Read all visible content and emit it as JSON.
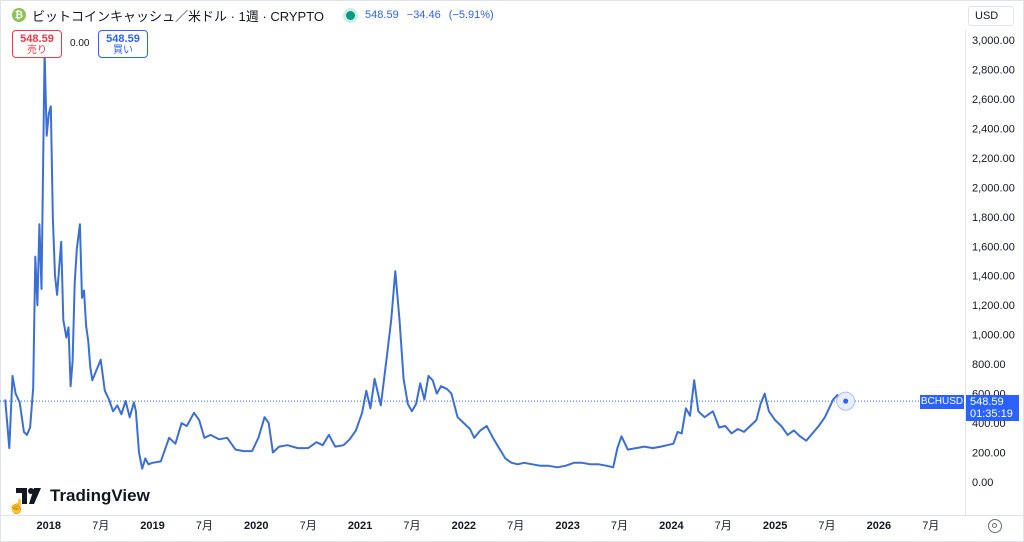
{
  "header": {
    "title": "ビットコインキャッシュ／米ドル · 1週 · CRYPTO",
    "coin_glyph": "₿",
    "price": "548.59",
    "change": "−34.46",
    "change_pct": "(−5.91%)"
  },
  "trade": {
    "sell_value": "548.59",
    "sell_label": "売り",
    "spread": "0.00",
    "buy_value": "548.59",
    "buy_label": "買い"
  },
  "currency_select": "USD",
  "last_price": {
    "symbol": "BCHUSD",
    "value": "548.59",
    "countdown": "01:35:19"
  },
  "brand": "TradingView",
  "colors": {
    "line": "#2962ff",
    "accent": "#2962ff",
    "sell": "#f23645",
    "status": "#089981"
  },
  "chart_data": {
    "type": "line",
    "series_color": "#3b6fd8",
    "ylim": [
      0,
      3000
    ],
    "y_ticks": [
      "0.00",
      "200.00",
      "400.00",
      "600.00",
      "800.00",
      "1,000.00",
      "1,200.00",
      "1,400.00",
      "1,600.00",
      "1,800.00",
      "2,000.00",
      "2,200.00",
      "2,400.00",
      "2,600.00",
      "2,800.00",
      "3,000.00"
    ],
    "x_tick_labels": [
      {
        "label": "2018",
        "x": 2018.0,
        "bold": true
      },
      {
        "label": "7月",
        "x": 2018.5,
        "bold": false
      },
      {
        "label": "2019",
        "x": 2019.0,
        "bold": true
      },
      {
        "label": "7月",
        "x": 2019.5,
        "bold": false
      },
      {
        "label": "2020",
        "x": 2020.0,
        "bold": true
      },
      {
        "label": "7月",
        "x": 2020.5,
        "bold": false
      },
      {
        "label": "2021",
        "x": 2021.0,
        "bold": true
      },
      {
        "label": "7月",
        "x": 2021.5,
        "bold": false
      },
      {
        "label": "2022",
        "x": 2022.0,
        "bold": true
      },
      {
        "label": "7月",
        "x": 2022.5,
        "bold": false
      },
      {
        "label": "2023",
        "x": 2023.0,
        "bold": true
      },
      {
        "label": "7月",
        "x": 2023.5,
        "bold": false
      },
      {
        "label": "2024",
        "x": 2024.0,
        "bold": true
      },
      {
        "label": "7月",
        "x": 2024.5,
        "bold": false
      },
      {
        "label": "2025",
        "x": 2025.0,
        "bold": true
      },
      {
        "label": "7月",
        "x": 2025.5,
        "bold": false
      },
      {
        "label": "2026",
        "x": 2026.0,
        "bold": true
      },
      {
        "label": "7月",
        "x": 2026.5,
        "bold": false
      }
    ],
    "x_range": [
      2017.53,
      2026.83
    ],
    "points": [
      [
        2017.58,
        560
      ],
      [
        2017.62,
        230
      ],
      [
        2017.65,
        720
      ],
      [
        2017.68,
        600
      ],
      [
        2017.72,
        540
      ],
      [
        2017.76,
        340
      ],
      [
        2017.79,
        320
      ],
      [
        2017.82,
        370
      ],
      [
        2017.85,
        640
      ],
      [
        2017.87,
        1530
      ],
      [
        2017.89,
        1200
      ],
      [
        2017.91,
        1750
      ],
      [
        2017.93,
        1310
      ],
      [
        2017.96,
        2920
      ],
      [
        2017.98,
        2350
      ],
      [
        2018.0,
        2500
      ],
      [
        2018.02,
        2550
      ],
      [
        2018.04,
        1780
      ],
      [
        2018.06,
        1400
      ],
      [
        2018.08,
        1270
      ],
      [
        2018.1,
        1450
      ],
      [
        2018.12,
        1630
      ],
      [
        2018.14,
        1100
      ],
      [
        2018.17,
        980
      ],
      [
        2018.19,
        1050
      ],
      [
        2018.21,
        650
      ],
      [
        2018.23,
        820
      ],
      [
        2018.25,
        1350
      ],
      [
        2018.27,
        1580
      ],
      [
        2018.3,
        1750
      ],
      [
        2018.32,
        1250
      ],
      [
        2018.34,
        1300
      ],
      [
        2018.36,
        1060
      ],
      [
        2018.38,
        960
      ],
      [
        2018.4,
        780
      ],
      [
        2018.42,
        690
      ],
      [
        2018.46,
        760
      ],
      [
        2018.5,
        830
      ],
      [
        2018.54,
        620
      ],
      [
        2018.58,
        560
      ],
      [
        2018.62,
        480
      ],
      [
        2018.66,
        520
      ],
      [
        2018.7,
        460
      ],
      [
        2018.74,
        550
      ],
      [
        2018.78,
        440
      ],
      [
        2018.82,
        540
      ],
      [
        2018.84,
        480
      ],
      [
        2018.87,
        200
      ],
      [
        2018.9,
        90
      ],
      [
        2018.93,
        160
      ],
      [
        2018.96,
        120
      ],
      [
        2019.0,
        130
      ],
      [
        2019.08,
        140
      ],
      [
        2019.16,
        300
      ],
      [
        2019.22,
        260
      ],
      [
        2019.28,
        400
      ],
      [
        2019.33,
        380
      ],
      [
        2019.4,
        470
      ],
      [
        2019.45,
        420
      ],
      [
        2019.5,
        300
      ],
      [
        2019.56,
        320
      ],
      [
        2019.64,
        290
      ],
      [
        2019.72,
        300
      ],
      [
        2019.8,
        220
      ],
      [
        2019.88,
        210
      ],
      [
        2019.96,
        210
      ],
      [
        2020.02,
        300
      ],
      [
        2020.08,
        440
      ],
      [
        2020.12,
        400
      ],
      [
        2020.16,
        200
      ],
      [
        2020.22,
        240
      ],
      [
        2020.3,
        250
      ],
      [
        2020.4,
        230
      ],
      [
        2020.5,
        230
      ],
      [
        2020.58,
        270
      ],
      [
        2020.64,
        250
      ],
      [
        2020.7,
        320
      ],
      [
        2020.76,
        240
      ],
      [
        2020.84,
        250
      ],
      [
        2020.9,
        290
      ],
      [
        2020.96,
        350
      ],
      [
        2021.02,
        470
      ],
      [
        2021.06,
        620
      ],
      [
        2021.1,
        500
      ],
      [
        2021.14,
        700
      ],
      [
        2021.2,
        520
      ],
      [
        2021.26,
        860
      ],
      [
        2021.3,
        1100
      ],
      [
        2021.34,
        1430
      ],
      [
        2021.38,
        1100
      ],
      [
        2021.42,
        700
      ],
      [
        2021.46,
        530
      ],
      [
        2021.5,
        480
      ],
      [
        2021.54,
        530
      ],
      [
        2021.58,
        670
      ],
      [
        2021.62,
        560
      ],
      [
        2021.66,
        720
      ],
      [
        2021.7,
        690
      ],
      [
        2021.74,
        600
      ],
      [
        2021.78,
        650
      ],
      [
        2021.84,
        630
      ],
      [
        2021.88,
        600
      ],
      [
        2021.94,
        440
      ],
      [
        2022.0,
        400
      ],
      [
        2022.06,
        360
      ],
      [
        2022.1,
        300
      ],
      [
        2022.16,
        350
      ],
      [
        2022.22,
        380
      ],
      [
        2022.28,
        300
      ],
      [
        2022.34,
        230
      ],
      [
        2022.4,
        160
      ],
      [
        2022.46,
        130
      ],
      [
        2022.52,
        120
      ],
      [
        2022.58,
        130
      ],
      [
        2022.66,
        120
      ],
      [
        2022.74,
        110
      ],
      [
        2022.82,
        110
      ],
      [
        2022.9,
        100
      ],
      [
        2022.98,
        110
      ],
      [
        2023.06,
        130
      ],
      [
        2023.14,
        130
      ],
      [
        2023.22,
        120
      ],
      [
        2023.3,
        120
      ],
      [
        2023.38,
        110
      ],
      [
        2023.44,
        100
      ],
      [
        2023.48,
        230
      ],
      [
        2023.52,
        310
      ],
      [
        2023.58,
        220
      ],
      [
        2023.66,
        230
      ],
      [
        2023.74,
        240
      ],
      [
        2023.82,
        230
      ],
      [
        2023.9,
        240
      ],
      [
        2023.96,
        250
      ],
      [
        2024.02,
        260
      ],
      [
        2024.06,
        340
      ],
      [
        2024.1,
        330
      ],
      [
        2024.14,
        500
      ],
      [
        2024.18,
        450
      ],
      [
        2024.22,
        690
      ],
      [
        2024.26,
        480
      ],
      [
        2024.32,
        440
      ],
      [
        2024.4,
        480
      ],
      [
        2024.46,
        370
      ],
      [
        2024.52,
        380
      ],
      [
        2024.58,
        330
      ],
      [
        2024.64,
        360
      ],
      [
        2024.7,
        340
      ],
      [
        2024.76,
        380
      ],
      [
        2024.82,
        420
      ],
      [
        2024.86,
        530
      ],
      [
        2024.9,
        600
      ],
      [
        2024.94,
        480
      ],
      [
        2025.0,
        420
      ],
      [
        2025.06,
        380
      ],
      [
        2025.12,
        320
      ],
      [
        2025.18,
        350
      ],
      [
        2025.24,
        310
      ],
      [
        2025.3,
        280
      ],
      [
        2025.36,
        330
      ],
      [
        2025.42,
        380
      ],
      [
        2025.48,
        440
      ],
      [
        2025.52,
        500
      ],
      [
        2025.56,
        560
      ],
      [
        2025.6,
        590
      ],
      [
        2025.64,
        540
      ],
      [
        2025.68,
        548.59
      ]
    ]
  }
}
